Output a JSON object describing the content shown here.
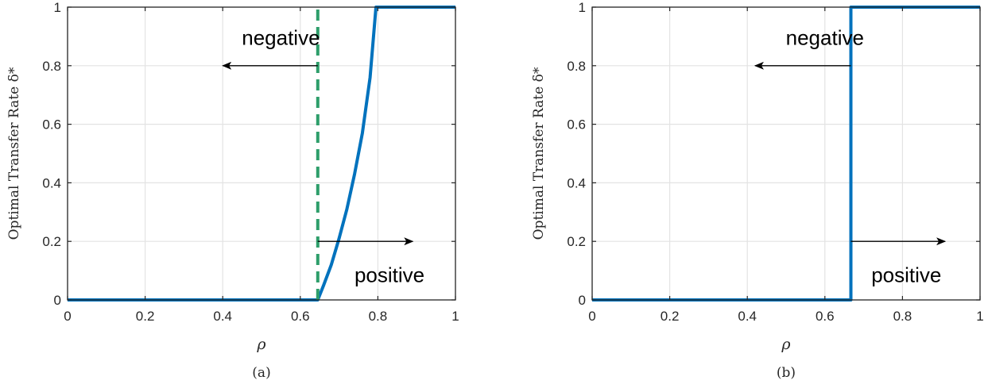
{
  "chart_data": [
    {
      "type": "line",
      "caption": "(a)",
      "xlabel": "ρ",
      "ylabel": "Optimal Transfer Rate δ*",
      "xlim": [
        0,
        1
      ],
      "ylim": [
        0,
        1
      ],
      "xticks": [
        "0",
        "0.2",
        "0.4",
        "0.6",
        "0.8",
        "1"
      ],
      "yticks": [
        "0",
        "0.2",
        "0.4",
        "0.6",
        "0.8",
        "1"
      ],
      "grid": true,
      "colors": {
        "curve": "#0072BD",
        "threshold": "#2E9E6B",
        "grid": "#E3E3E3",
        "axes": "#262626"
      },
      "series": [
        {
          "style": "solid",
          "x": [
            0,
            0.645,
            0.66,
            0.68,
            0.7,
            0.72,
            0.74,
            0.76,
            0.78,
            0.795,
            1.0
          ],
          "y": [
            0,
            0,
            0.05,
            0.12,
            0.21,
            0.31,
            0.43,
            0.57,
            0.76,
            1.0,
            1.0
          ]
        },
        {
          "style": "dashed",
          "x": [
            0.645,
            0.645
          ],
          "y": [
            0,
            1
          ]
        }
      ],
      "annotations": [
        {
          "text": "negative",
          "x": 0.55,
          "y": 0.895,
          "arrow_from": [
            0.645,
            0.8
          ],
          "arrow_to": [
            0.4,
            0.8
          ]
        },
        {
          "text": "positive",
          "x": 0.83,
          "y": 0.085,
          "arrow_from": [
            0.645,
            0.2
          ],
          "arrow_to": [
            0.89,
            0.2
          ]
        }
      ]
    },
    {
      "type": "line",
      "caption": "(b)",
      "xlabel": "ρ",
      "ylabel": "Optimal Transfer Rate δ*",
      "xlim": [
        0,
        1
      ],
      "ylim": [
        0,
        1
      ],
      "xticks": [
        "0",
        "0.2",
        "0.4",
        "0.6",
        "0.8",
        "1"
      ],
      "yticks": [
        "0",
        "0.2",
        "0.4",
        "0.6",
        "0.8",
        "1"
      ],
      "grid": true,
      "colors": {
        "curve": "#0072BD",
        "grid": "#E3E3E3",
        "axes": "#262626"
      },
      "series": [
        {
          "style": "solid",
          "x": [
            0,
            0.667,
            0.667,
            1.0
          ],
          "y": [
            0,
            0,
            1,
            1
          ]
        }
      ],
      "annotations": [
        {
          "text": "negative",
          "x": 0.6,
          "y": 0.895,
          "arrow_from": [
            0.667,
            0.8
          ],
          "arrow_to": [
            0.42,
            0.8
          ]
        },
        {
          "text": "positive",
          "x": 0.81,
          "y": 0.085,
          "arrow_from": [
            0.667,
            0.2
          ],
          "arrow_to": [
            0.91,
            0.2
          ]
        }
      ]
    }
  ]
}
